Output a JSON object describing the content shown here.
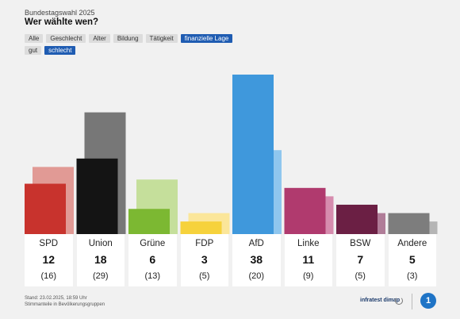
{
  "header": {
    "subtitle": "Bundestagswahl 2025",
    "title": "Wer wählte wen?"
  },
  "tabs": [
    {
      "label": "Alle",
      "active": false
    },
    {
      "label": "Geschlecht",
      "active": false
    },
    {
      "label": "Alter",
      "active": false
    },
    {
      "label": "Bildung",
      "active": false
    },
    {
      "label": "Tätigkeit",
      "active": false
    },
    {
      "label": "finanzielle Lage",
      "active": true
    }
  ],
  "subtabs": [
    {
      "label": "gut",
      "active": false
    },
    {
      "label": "schlecht",
      "active": true
    }
  ],
  "chart_data": {
    "type": "bar",
    "categories": [
      "SPD",
      "Union",
      "Grüne",
      "FDP",
      "AfD",
      "Linke",
      "BSW",
      "Andere"
    ],
    "series": [
      {
        "values": [
          12,
          18,
          6,
          3,
          38,
          11,
          7,
          5
        ]
      },
      {
        "values": [
          16,
          29,
          13,
          5,
          20,
          9,
          5,
          3
        ]
      }
    ],
    "value_labels": [
      "12",
      "18",
      "6",
      "3",
      "38",
      "11",
      "7",
      "5"
    ],
    "previous_labels": [
      "(16)",
      "(29)",
      "(13)",
      "(5)",
      "(20)",
      "(9)",
      "(5)",
      "(3)"
    ],
    "colors": [
      "#c8332d",
      "#141414",
      "#7cb832",
      "#f6d23c",
      "#3f98dc",
      "#b03a6e",
      "#6b1f44",
      "#7d7d7d"
    ],
    "previous_colors": [
      "#e19a95",
      "#777777",
      "#c5df9b",
      "#fbe69a",
      "#8fc6ee",
      "#d68cae",
      "#b07d98",
      "#b5b5b5"
    ],
    "ylim": [
      0,
      38
    ],
    "grid": false
  },
  "footer": {
    "line1": "Stand: 23.02.2025, 18:59 Uhr",
    "line2": "Stimmanteile in Bevölkerungsgruppen"
  },
  "branding": {
    "infratest": "infratest dimap",
    "ard": "1",
    "ard_color": "#1f74c6"
  }
}
